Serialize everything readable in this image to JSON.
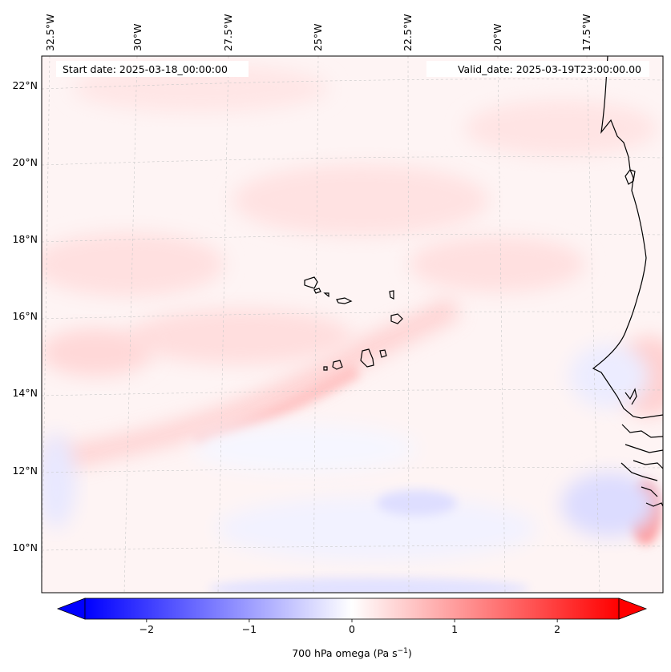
{
  "header": {
    "start_date": "Start date: 2025-03-18_00:00:00",
    "valid_date": "Valid_date: 2025-03-19T23:00:00.00"
  },
  "map": {
    "lon_labels": [
      "32.5°W",
      "30°W",
      "27.5°W",
      "25°W",
      "22.5°W",
      "20°W",
      "17.5°W"
    ],
    "lat_labels": [
      "22°N",
      "20°N",
      "18°N",
      "16°N",
      "14°N",
      "12°N",
      "10°N"
    ],
    "gridlines": "dashed",
    "field": "700 hPa omega",
    "field_colors": {
      "negative": "#0000ff",
      "zero": "#ffffff",
      "positive": "#ff0000"
    }
  },
  "colorbar": {
    "ticks": [
      -2,
      -1,
      0,
      1,
      2
    ],
    "tick_labels": [
      "−2",
      "−1",
      "0",
      "1",
      "2"
    ],
    "range": [
      -2.6,
      2.6
    ],
    "extend": "both",
    "label": "700 hPa omega (Pa s",
    "label_sup": "−1",
    "label_end": ")"
  }
}
